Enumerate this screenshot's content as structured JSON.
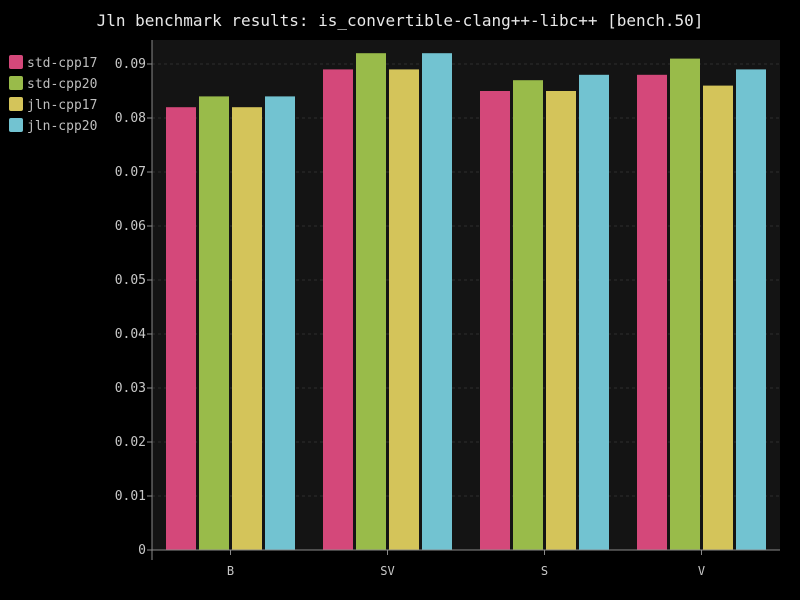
{
  "chart_data": {
    "type": "bar",
    "title": "Jln benchmark results: is_convertible-clang++-libc++ [bench.50]",
    "xlabel": "",
    "ylabel": "",
    "categories": [
      "B",
      "SV",
      "S",
      "V"
    ],
    "series": [
      {
        "name": "std-cpp17",
        "color": "#d4487a",
        "values": [
          0.082,
          0.089,
          0.085,
          0.088
        ]
      },
      {
        "name": "std-cpp20",
        "color": "#99bb4a",
        "values": [
          0.084,
          0.092,
          0.087,
          0.091
        ]
      },
      {
        "name": "jln-cpp17",
        "color": "#d4c45a",
        "values": [
          0.082,
          0.089,
          0.085,
          0.086
        ]
      },
      {
        "name": "jln-cpp20",
        "color": "#72c3d1",
        "values": [
          0.084,
          0.092,
          0.088,
          0.089
        ]
      }
    ],
    "ylim": [
      0,
      0.09
    ],
    "yticks": [
      "0",
      "0.01",
      "0.02",
      "0.03",
      "0.04",
      "0.05",
      "0.06",
      "0.07",
      "0.08",
      "0.09"
    ],
    "grid": true,
    "legend": "top-left",
    "background": "#000000",
    "plot_background": "#141414"
  }
}
